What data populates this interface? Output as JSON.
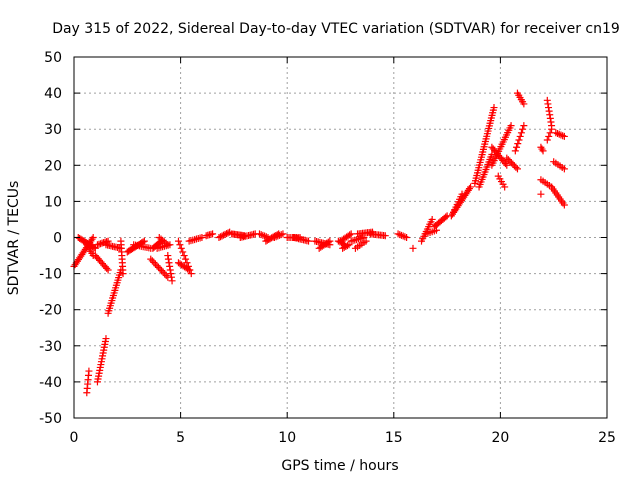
{
  "chart_data": {
    "type": "scatter",
    "title": "Day 315 of 2022, Sidereal Day-to-day VTEC variation (SDTVAR) for receiver cn19",
    "xlabel": "GPS time / hours",
    "ylabel": "SDTVAR / TECUs",
    "xlim": [
      0,
      25
    ],
    "ylim": [
      -50,
      50
    ],
    "xticks": [
      0,
      5,
      10,
      15,
      20,
      25
    ],
    "yticks": [
      -50,
      -40,
      -30,
      -20,
      -10,
      0,
      10,
      20,
      30,
      40,
      50
    ],
    "grid": true,
    "legend": "none",
    "marker": "plus",
    "color": "#ff0000",
    "segments": [
      {
        "x0": 0.0,
        "y0": -8,
        "x1": 0.9,
        "y1": 0,
        "n": 18
      },
      {
        "x0": 0.2,
        "y0": 0,
        "x1": 1.0,
        "y1": -3,
        "n": 14
      },
      {
        "x0": 0.6,
        "y0": -2,
        "x1": 0.9,
        "y1": -5,
        "n": 6
      },
      {
        "x0": 0.6,
        "y0": -43,
        "x1": 0.7,
        "y1": -37,
        "n": 6
      },
      {
        "x0": 1.1,
        "y0": -40,
        "x1": 1.5,
        "y1": -28,
        "n": 16
      },
      {
        "x0": 1.1,
        "y0": -2,
        "x1": 1.6,
        "y1": -1,
        "n": 8
      },
      {
        "x0": 1.0,
        "y0": -5,
        "x1": 1.6,
        "y1": -9,
        "n": 10
      },
      {
        "x0": 1.6,
        "y0": -21,
        "x1": 2.2,
        "y1": -9,
        "n": 18
      },
      {
        "x0": 1.5,
        "y0": -2,
        "x1": 2.2,
        "y1": -3,
        "n": 10
      },
      {
        "x0": 2.2,
        "y0": -1,
        "x1": 2.3,
        "y1": -10,
        "n": 10
      },
      {
        "x0": 2.5,
        "y0": -4,
        "x1": 3.3,
        "y1": -1,
        "n": 14
      },
      {
        "x0": 2.8,
        "y0": -2,
        "x1": 3.6,
        "y1": -3,
        "n": 10
      },
      {
        "x0": 3.7,
        "y0": -3,
        "x1": 4.1,
        "y1": -1,
        "n": 8
      },
      {
        "x0": 3.6,
        "y0": -6,
        "x1": 4.4,
        "y1": -11,
        "n": 12
      },
      {
        "x0": 3.9,
        "y0": -3,
        "x1": 4.5,
        "y1": -2,
        "n": 8
      },
      {
        "x0": 4.4,
        "y0": -5,
        "x1": 4.6,
        "y1": -12,
        "n": 8
      },
      {
        "x0": 4.0,
        "y0": 0,
        "x1": 4.4,
        "y1": -2,
        "n": 6
      },
      {
        "x0": 4.9,
        "y0": -1,
        "x1": 5.5,
        "y1": -10,
        "n": 10
      },
      {
        "x0": 4.9,
        "y0": -7,
        "x1": 5.4,
        "y1": -9,
        "n": 8
      },
      {
        "x0": 5.4,
        "y0": -1,
        "x1": 6.0,
        "y1": 0,
        "n": 8
      },
      {
        "x0": 6.2,
        "y0": 0.5,
        "x1": 6.5,
        "y1": 1,
        "n": 5
      },
      {
        "x0": 6.8,
        "y0": 0,
        "x1": 7.3,
        "y1": 1.5,
        "n": 8
      },
      {
        "x0": 7.4,
        "y0": 1,
        "x1": 8.0,
        "y1": 0.5,
        "n": 10
      },
      {
        "x0": 7.8,
        "y0": 0,
        "x1": 8.5,
        "y1": 1,
        "n": 10
      },
      {
        "x0": 8.7,
        "y0": 1,
        "x1": 9.1,
        "y1": 0,
        "n": 6
      },
      {
        "x0": 9.0,
        "y0": -1,
        "x1": 9.6,
        "y1": 1,
        "n": 10
      },
      {
        "x0": 9.4,
        "y0": 0,
        "x1": 9.8,
        "y1": 1,
        "n": 6
      },
      {
        "x0": 10.0,
        "y0": 0,
        "x1": 10.6,
        "y1": 0,
        "n": 8
      },
      {
        "x0": 10.3,
        "y0": 0,
        "x1": 11.0,
        "y1": -1,
        "n": 10
      },
      {
        "x0": 11.3,
        "y0": -1,
        "x1": 12.0,
        "y1": -2,
        "n": 10
      },
      {
        "x0": 11.5,
        "y0": -3,
        "x1": 12.0,
        "y1": -1,
        "n": 8
      },
      {
        "x0": 12.4,
        "y0": -1,
        "x1": 12.7,
        "y1": -2,
        "n": 5
      },
      {
        "x0": 12.6,
        "y0": -3,
        "x1": 12.9,
        "y1": -2,
        "n": 5
      },
      {
        "x0": 12.5,
        "y0": -1,
        "x1": 13.0,
        "y1": 1,
        "n": 8
      },
      {
        "x0": 13.0,
        "y0": -1,
        "x1": 13.6,
        "y1": 0,
        "n": 8
      },
      {
        "x0": 13.3,
        "y0": 1,
        "x1": 14.0,
        "y1": 1.5,
        "n": 10
      },
      {
        "x0": 13.2,
        "y0": -3,
        "x1": 13.7,
        "y1": -1,
        "n": 6
      },
      {
        "x0": 13.9,
        "y0": 1,
        "x1": 14.6,
        "y1": 0.5,
        "n": 10
      },
      {
        "x0": 15.2,
        "y0": 1,
        "x1": 15.6,
        "y1": 0,
        "n": 6
      },
      {
        "x0": 15.9,
        "y0": -3,
        "x1": 16.0,
        "y1": -3,
        "n": 1
      },
      {
        "x0": 16.3,
        "y0": -1,
        "x1": 16.8,
        "y1": 5,
        "n": 10
      },
      {
        "x0": 16.9,
        "y0": 3,
        "x1": 17.5,
        "y1": 6,
        "n": 10
      },
      {
        "x0": 16.5,
        "y0": 1,
        "x1": 17.0,
        "y1": 2,
        "n": 6
      },
      {
        "x0": 17.7,
        "y0": 6,
        "x1": 18.6,
        "y1": 14,
        "n": 18
      },
      {
        "x0": 17.8,
        "y0": 7,
        "x1": 18.2,
        "y1": 12,
        "n": 8
      },
      {
        "x0": 18.8,
        "y0": 15,
        "x1": 19.7,
        "y1": 36,
        "n": 30
      },
      {
        "x0": 19.0,
        "y0": 14,
        "x1": 19.6,
        "y1": 23,
        "n": 14
      },
      {
        "x0": 19.6,
        "y0": 20,
        "x1": 20.5,
        "y1": 31,
        "n": 18
      },
      {
        "x0": 19.6,
        "y0": 25,
        "x1": 20.3,
        "y1": 20,
        "n": 12
      },
      {
        "x0": 19.9,
        "y0": 17,
        "x1": 20.2,
        "y1": 14,
        "n": 5
      },
      {
        "x0": 20.3,
        "y0": 22,
        "x1": 20.8,
        "y1": 19,
        "n": 8
      },
      {
        "x0": 20.7,
        "y0": 24,
        "x1": 21.1,
        "y1": 31,
        "n": 8
      },
      {
        "x0": 20.8,
        "y0": 40,
        "x1": 21.1,
        "y1": 37,
        "n": 6
      },
      {
        "x0": 21.9,
        "y0": 25,
        "x1": 22.0,
        "y1": 24,
        "n": 3
      },
      {
        "x0": 21.9,
        "y0": 16,
        "x1": 22.4,
        "y1": 14,
        "n": 6
      },
      {
        "x0": 21.9,
        "y0": 12,
        "x1": 22.0,
        "y1": 12,
        "n": 1
      },
      {
        "x0": 22.2,
        "y0": 38,
        "x1": 22.4,
        "y1": 31,
        "n": 8
      },
      {
        "x0": 22.2,
        "y0": 27,
        "x1": 22.4,
        "y1": 30,
        "n": 4
      },
      {
        "x0": 22.4,
        "y0": 14,
        "x1": 23.0,
        "y1": 9,
        "n": 10
      },
      {
        "x0": 22.6,
        "y0": 29,
        "x1": 23.0,
        "y1": 28,
        "n": 6
      },
      {
        "x0": 22.5,
        "y0": 21,
        "x1": 23.0,
        "y1": 19,
        "n": 6
      }
    ]
  }
}
